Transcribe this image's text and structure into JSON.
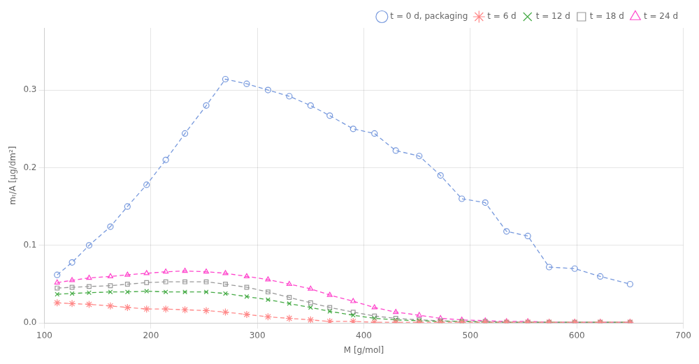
{
  "chart_data": {
    "type": "line",
    "x_label": "M [g/mol]",
    "y_label": "mₜ/A [μg/dm²]",
    "x": [
      112,
      126,
      142,
      162,
      178,
      196,
      214,
      232,
      252,
      270,
      290,
      310,
      330,
      350,
      368,
      390,
      410,
      430,
      452,
      472,
      492,
      514,
      534,
      554,
      574,
      598,
      622,
      650
    ],
    "series": [
      {
        "name": "t = 0 d, packaging",
        "color": "#7799dd",
        "marker": "open-circle",
        "line_style": "dashed",
        "values": [
          0.062,
          0.078,
          0.1,
          0.124,
          0.15,
          0.178,
          0.21,
          0.244,
          0.28,
          0.314,
          0.308,
          0.3,
          0.292,
          0.28,
          0.267,
          0.25,
          0.244,
          0.222,
          0.215,
          0.19,
          0.16,
          0.155,
          0.118,
          0.112,
          0.072,
          0.07,
          0.06,
          0.05
        ]
      },
      {
        "name": "t = 6 d",
        "color": "#ff8888",
        "marker": "star",
        "line_style": "dashed",
        "values": [
          0.026,
          0.025,
          0.024,
          0.022,
          0.02,
          0.018,
          0.018,
          0.017,
          0.016,
          0.014,
          0.011,
          0.008,
          0.006,
          0.004,
          0.002,
          0.002,
          0.001,
          0.001,
          0.001,
          0.001,
          0.001,
          0.001,
          0.001,
          0.001,
          0.001,
          0.001,
          0.001,
          0.001
        ]
      },
      {
        "name": "t = 12 d",
        "color": "#44aa44",
        "marker": "x",
        "line_style": "dashed",
        "values": [
          0.037,
          0.038,
          0.039,
          0.04,
          0.04,
          0.041,
          0.04,
          0.04,
          0.04,
          0.038,
          0.034,
          0.03,
          0.025,
          0.02,
          0.015,
          0.01,
          0.006,
          0.004,
          0.003,
          0.002,
          0.002,
          0.001,
          0.001,
          0.001,
          0.001,
          0.001,
          0.001,
          0.001
        ]
      },
      {
        "name": "t = 18 d",
        "color": "#999999",
        "marker": "open-square",
        "line_style": "dashed",
        "values": [
          0.045,
          0.046,
          0.047,
          0.048,
          0.05,
          0.052,
          0.053,
          0.053,
          0.053,
          0.05,
          0.046,
          0.04,
          0.033,
          0.026,
          0.02,
          0.014,
          0.009,
          0.006,
          0.004,
          0.003,
          0.002,
          0.002,
          0.001,
          0.001,
          0.001,
          0.001,
          0.001,
          0.001
        ]
      },
      {
        "name": "t = 24 d",
        "color": "#ff44cc",
        "marker": "open-triangle",
        "line_style": "dashed",
        "values": [
          0.052,
          0.055,
          0.058,
          0.06,
          0.062,
          0.064,
          0.066,
          0.067,
          0.066,
          0.064,
          0.06,
          0.056,
          0.05,
          0.044,
          0.036,
          0.028,
          0.02,
          0.014,
          0.01,
          0.006,
          0.004,
          0.003,
          0.002,
          0.002,
          0.001,
          0.001,
          0.001,
          0.001
        ]
      }
    ],
    "xlim": [
      100,
      700
    ],
    "ylim": [
      0,
      0.38
    ],
    "xticks": [
      100,
      200,
      300,
      400,
      500,
      600,
      700
    ],
    "yticks": [
      {
        "value": 0.0,
        "label": "0.0"
      },
      0.1,
      0.2,
      0.3
    ],
    "grid": true,
    "legend": "upper right"
  }
}
